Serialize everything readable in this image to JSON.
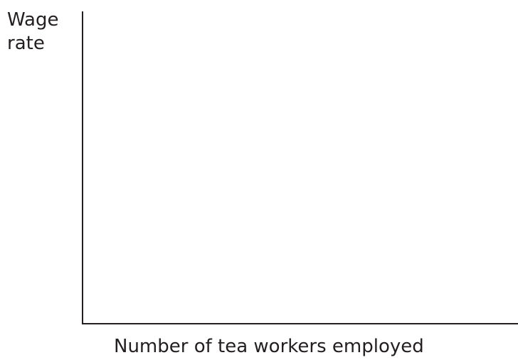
{
  "diagram": {
    "y_axis_label_line1": "Wage",
    "y_axis_label_line2": "rate",
    "x_axis_label": "Number of tea workers employed",
    "axis_color": "#231f20"
  }
}
